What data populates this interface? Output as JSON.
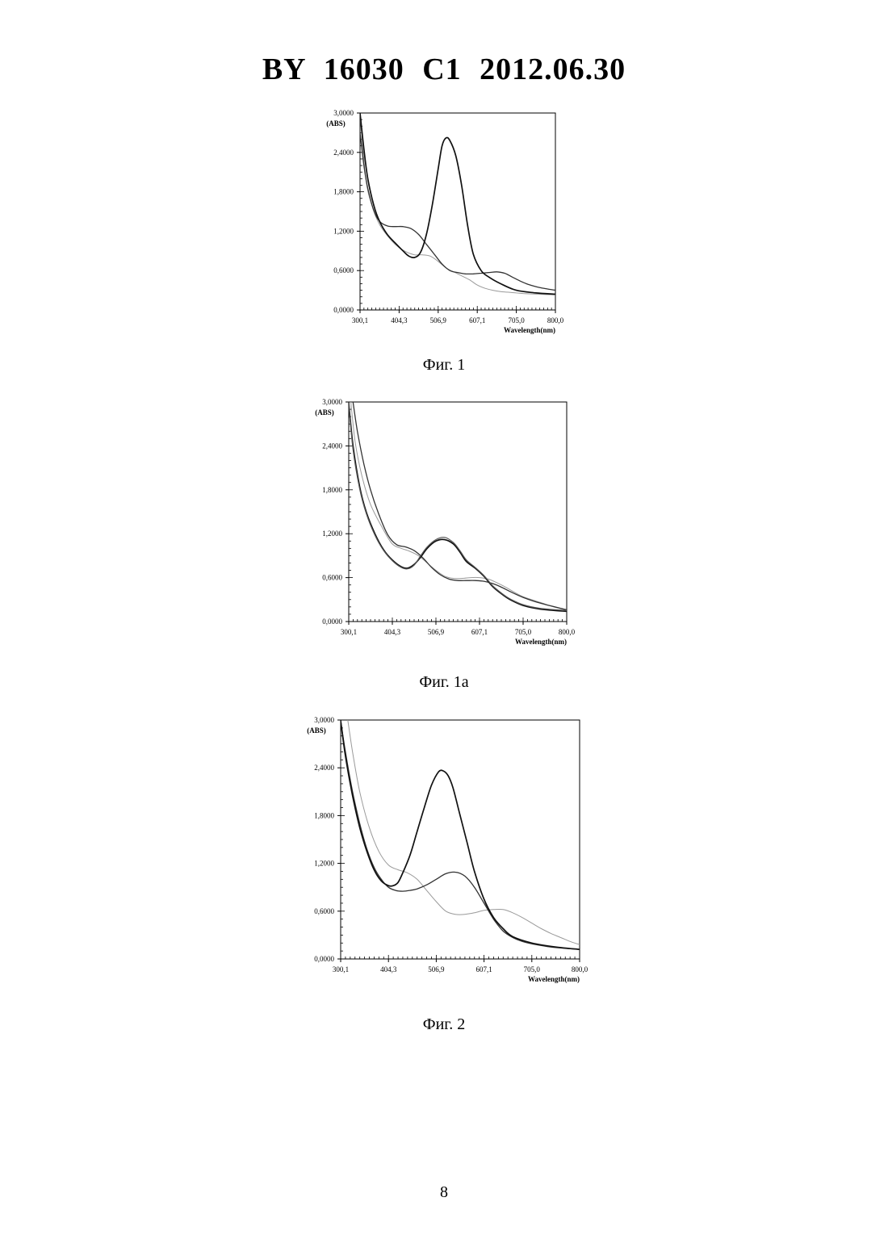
{
  "header": {
    "title": "BY 16030 C1 2012.06.30"
  },
  "page_number": "8",
  "figures": [
    {
      "caption": "Фиг. 1"
    },
    {
      "caption": "Фиг. 1а"
    },
    {
      "caption": "Фиг. 2"
    }
  ],
  "chart_data": [
    {
      "type": "line",
      "title": "",
      "xlabel": "Wavelength(nm)",
      "ylabel": "(ABS)",
      "xlim": [
        300.1,
        800.0
      ],
      "ylim": [
        0.0,
        3.0
      ],
      "x_ticks": [
        "300,1",
        "404,3",
        "506,9",
        "607,1",
        "705,0",
        "800,0"
      ],
      "y_ticks": [
        "0,0000",
        "0,6000",
        "1,2000",
        "1,8000",
        "2,4000",
        "3,0000"
      ],
      "grid": false,
      "series": [
        {
          "x": [
            300,
            315,
            330,
            350,
            380,
            400,
            420,
            440,
            460,
            480,
            500,
            520,
            540,
            560,
            580,
            600,
            620,
            640,
            660,
            680,
            700,
            720,
            760,
            800
          ],
          "values": [
            2.95,
            2.0,
            1.6,
            1.3,
            1.06,
            0.95,
            0.88,
            0.84,
            0.84,
            0.82,
            0.74,
            0.64,
            0.58,
            0.52,
            0.46,
            0.38,
            0.33,
            0.3,
            0.28,
            0.27,
            0.26,
            0.25,
            0.24,
            0.23
          ]
        },
        {
          "x": [
            300,
            310,
            320,
            335,
            350,
            370,
            390,
            410,
            430,
            450,
            470,
            490,
            510,
            530,
            550,
            570,
            590,
            610,
            630,
            650,
            670,
            690,
            710,
            730,
            760,
            800
          ],
          "values": [
            2.7,
            2.2,
            1.85,
            1.52,
            1.35,
            1.28,
            1.27,
            1.27,
            1.24,
            1.15,
            1.0,
            0.85,
            0.7,
            0.6,
            0.57,
            0.55,
            0.55,
            0.56,
            0.57,
            0.58,
            0.56,
            0.5,
            0.44,
            0.39,
            0.34,
            0.3
          ]
        },
        {
          "x": [
            300,
            310,
            320,
            335,
            350,
            370,
            390,
            410,
            425,
            440,
            455,
            470,
            485,
            500,
            510,
            520,
            530,
            545,
            560,
            575,
            590,
            610,
            630,
            660,
            700,
            750,
            800
          ],
          "values": [
            3.0,
            2.45,
            2.0,
            1.6,
            1.35,
            1.15,
            1.02,
            0.9,
            0.82,
            0.8,
            0.88,
            1.15,
            1.6,
            2.15,
            2.5,
            2.62,
            2.58,
            2.35,
            1.9,
            1.3,
            0.85,
            0.6,
            0.5,
            0.4,
            0.3,
            0.26,
            0.24
          ]
        }
      ]
    },
    {
      "type": "line",
      "title": "",
      "xlabel": "Wavelength(nm)",
      "ylabel": "(ABS)",
      "xlim": [
        300.1,
        800.0
      ],
      "ylim": [
        0.0,
        3.0
      ],
      "x_ticks": [
        "300,1",
        "404,3",
        "506,9",
        "607,1",
        "705,0",
        "800,0"
      ],
      "y_ticks": [
        "0,0000",
        "0,6000",
        "1,2000",
        "1,8000",
        "2,4000",
        "3,0000"
      ],
      "grid": false,
      "series": [
        {
          "x": [
            305,
            315,
            330,
            350,
            380,
            400,
            420,
            440,
            460,
            480,
            500,
            520,
            540,
            560,
            580,
            600,
            620,
            640,
            660,
            680,
            700,
            740,
            770,
            800
          ],
          "values": [
            3.0,
            2.45,
            2.0,
            1.6,
            1.25,
            1.06,
            1.0,
            0.96,
            0.9,
            0.8,
            0.7,
            0.62,
            0.59,
            0.59,
            0.6,
            0.6,
            0.58,
            0.53,
            0.47,
            0.4,
            0.34,
            0.26,
            0.2,
            0.16
          ]
        },
        {
          "x": [
            310,
            320,
            335,
            350,
            370,
            390,
            410,
            430,
            450,
            470,
            490,
            510,
            530,
            550,
            570,
            590,
            610,
            630,
            650,
            670,
            700,
            740,
            800
          ],
          "values": [
            3.0,
            2.6,
            2.15,
            1.8,
            1.45,
            1.18,
            1.05,
            1.02,
            0.97,
            0.87,
            0.74,
            0.64,
            0.58,
            0.56,
            0.56,
            0.56,
            0.55,
            0.52,
            0.47,
            0.41,
            0.33,
            0.25,
            0.16
          ]
        },
        {
          "x": [
            300,
            310,
            325,
            340,
            360,
            380,
            400,
            420,
            435,
            450,
            465,
            480,
            500,
            520,
            540,
            555,
            570,
            590,
            610,
            630,
            650,
            670,
            700,
            740,
            800
          ],
          "values": [
            3.0,
            2.4,
            1.85,
            1.5,
            1.2,
            0.98,
            0.84,
            0.75,
            0.73,
            0.78,
            0.88,
            1.0,
            1.1,
            1.12,
            1.06,
            0.95,
            0.82,
            0.73,
            0.62,
            0.48,
            0.38,
            0.3,
            0.22,
            0.17,
            0.14
          ]
        },
        {
          "x": [
            300,
            310,
            325,
            340,
            360,
            380,
            400,
            420,
            435,
            450,
            465,
            480,
            500,
            520,
            540,
            555,
            570,
            590,
            610,
            630,
            650,
            670,
            700,
            740,
            800
          ],
          "values": [
            3.0,
            2.35,
            1.82,
            1.48,
            1.18,
            0.97,
            0.83,
            0.74,
            0.72,
            0.77,
            0.9,
            1.02,
            1.12,
            1.15,
            1.08,
            0.97,
            0.84,
            0.74,
            0.63,
            0.49,
            0.39,
            0.31,
            0.23,
            0.18,
            0.15
          ]
        }
      ]
    },
    {
      "type": "line",
      "title": "",
      "xlabel": "Wavelength(nm)",
      "ylabel": "(ABS)",
      "xlim": [
        300.1,
        800.0
      ],
      "ylim": [
        0.0,
        3.0
      ],
      "x_ticks": [
        "300,1",
        "404,3",
        "506,9",
        "607,1",
        "705,0",
        "800,0"
      ],
      "y_ticks": [
        "0,0000",
        "0,6000",
        "1,2000",
        "1,8000",
        "2,4000",
        "3,0000"
      ],
      "grid": false,
      "series": [
        {
          "x": [
            315,
            325,
            340,
            360,
            380,
            400,
            420,
            440,
            460,
            480,
            500,
            520,
            540,
            560,
            580,
            600,
            620,
            640,
            660,
            680,
            700,
            720,
            740,
            760,
            780,
            800
          ],
          "values": [
            3.0,
            2.6,
            2.1,
            1.65,
            1.35,
            1.18,
            1.12,
            1.08,
            1.0,
            0.86,
            0.72,
            0.6,
            0.56,
            0.56,
            0.58,
            0.61,
            0.62,
            0.62,
            0.58,
            0.52,
            0.45,
            0.38,
            0.32,
            0.27,
            0.22,
            0.18
          ]
        },
        {
          "x": [
            300,
            310,
            325,
            340,
            355,
            370,
            385,
            400,
            415,
            430,
            445,
            460,
            480,
            500,
            520,
            540,
            560,
            580,
            600,
            620,
            640,
            660,
            680,
            700,
            740,
            800
          ],
          "values": [
            3.0,
            2.6,
            2.1,
            1.7,
            1.38,
            1.15,
            1.0,
            0.9,
            0.86,
            0.85,
            0.86,
            0.88,
            0.93,
            1.0,
            1.07,
            1.09,
            1.04,
            0.9,
            0.7,
            0.5,
            0.35,
            0.27,
            0.22,
            0.19,
            0.15,
            0.12
          ]
        },
        {
          "x": [
            300,
            310,
            325,
            340,
            355,
            370,
            385,
            400,
            410,
            420,
            430,
            445,
            460,
            475,
            490,
            505,
            515,
            525,
            535,
            550,
            565,
            580,
            600,
            620,
            640,
            660,
            700,
            750,
            800
          ],
          "values": [
            3.0,
            2.55,
            2.05,
            1.65,
            1.35,
            1.12,
            0.98,
            0.92,
            0.92,
            0.96,
            1.08,
            1.3,
            1.6,
            1.9,
            2.18,
            2.35,
            2.36,
            2.3,
            2.15,
            1.8,
            1.45,
            1.1,
            0.75,
            0.52,
            0.38,
            0.28,
            0.2,
            0.15,
            0.12
          ]
        }
      ]
    }
  ]
}
